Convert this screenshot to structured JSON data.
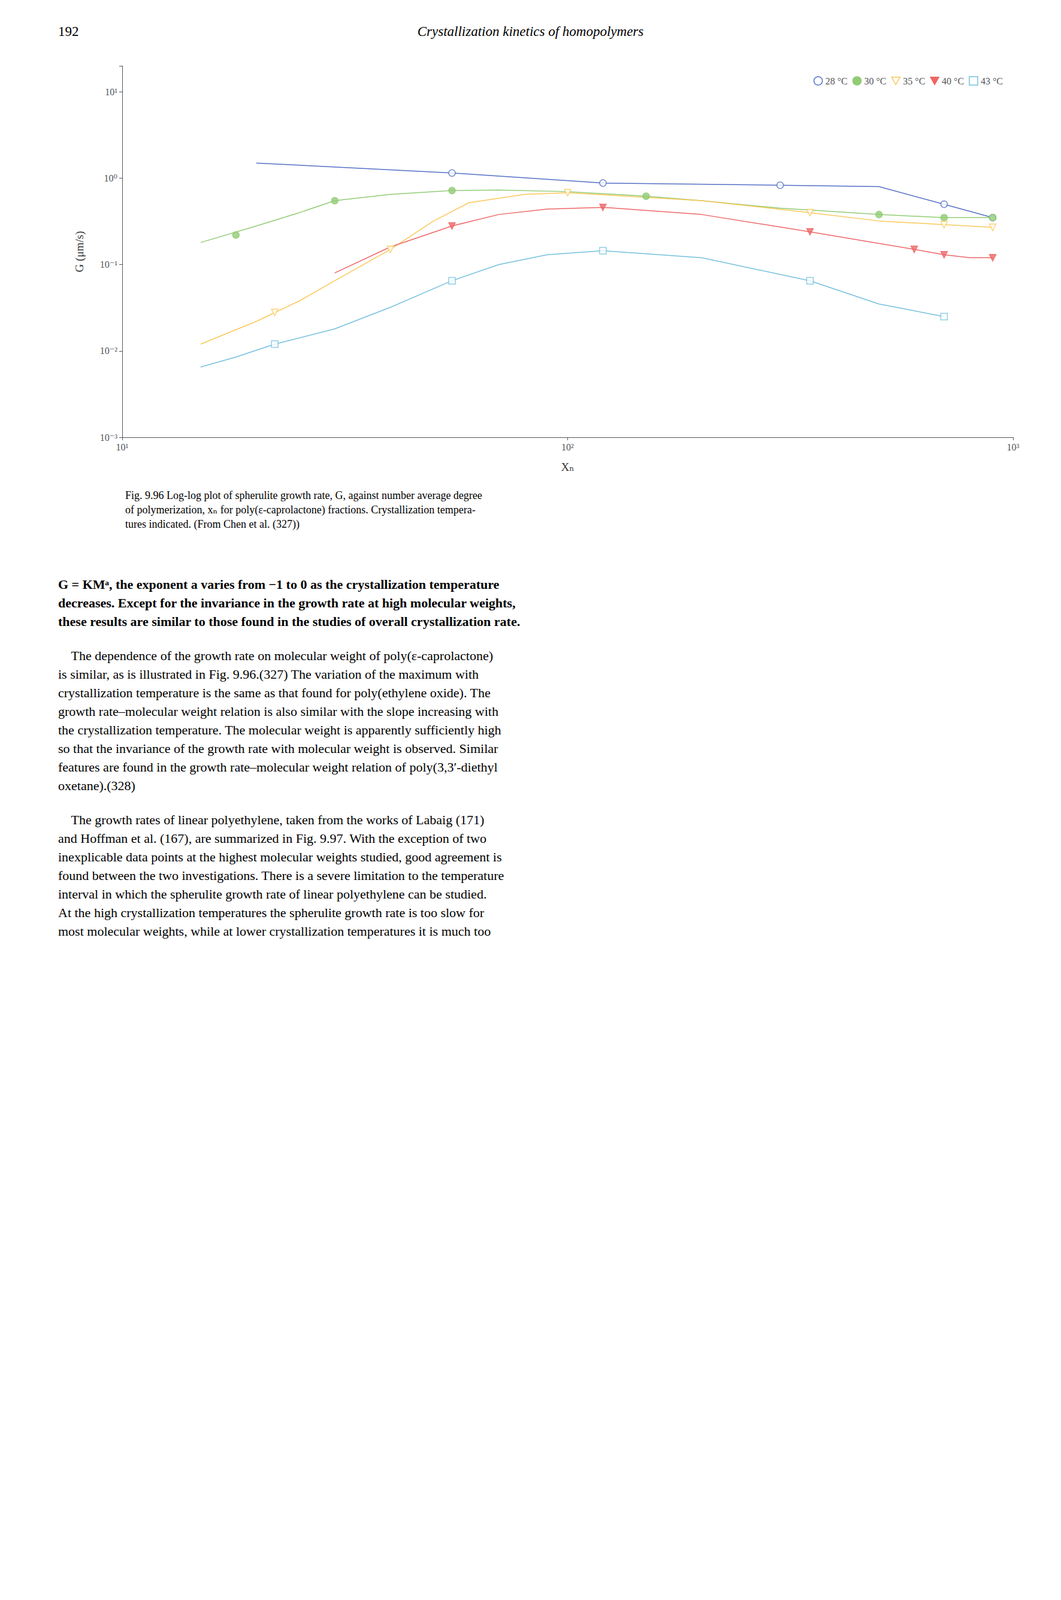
{
  "chart_data": {
    "type": "line",
    "title": "Fig. 9.96 Log-log plot of spherulite growth rate, G, against number average degree\nof polymerization, xₙ for poly(ε-caprolactone) fractions. Crystallization tempera-\ntures indicated. (From Chen et al. (327))",
    "x_label": "Xₙ",
    "y_label": "G (μm/s)",
    "log": true,
    "grid": false,
    "legend": "upper right",
    "xlim": [
      10,
      1000
    ],
    "xticks": [
      {
        "value": 10,
        "label": "10¹"
      },
      {
        "value": 100,
        "label": "10²"
      },
      {
        "value": 1000,
        "label": "10³"
      }
    ],
    "ylim": [
      0.001,
      20
    ],
    "yticks": [
      {
        "value": 0.001,
        "label": "10⁻³"
      },
      {
        "value": 0.01,
        "label": "10⁻²"
      },
      {
        "value": 0.1,
        "label": "10⁻¹"
      },
      {
        "value": 1,
        "label": "10⁰"
      },
      {
        "value": 10,
        "label": "10¹"
      }
    ],
    "series": [
      {
        "name": "28 °C",
        "type": "line",
        "x": [
          20,
          55,
          120,
          300,
          500,
          700,
          900
        ],
        "values": [
          1.5,
          1.15,
          0.88,
          0.83,
          0.8,
          0.5,
          0.35
        ],
        "points": {
          "type": "scatter",
          "marker": "circle-open",
          "x": [
            55,
            120,
            300,
            700,
            900
          ],
          "values": [
            1.15,
            0.88,
            0.83,
            0.5,
            0.35
          ]
        }
      },
      {
        "name": "30 °C",
        "type": "line",
        "x": [
          15,
          20,
          25,
          30,
          40,
          55,
          70,
          100,
          150,
          200,
          300,
          500,
          700,
          900
        ],
        "values": [
          0.18,
          0.28,
          0.4,
          0.55,
          0.65,
          0.72,
          0.73,
          0.7,
          0.62,
          0.55,
          0.45,
          0.38,
          0.35,
          0.35
        ],
        "points": {
          "type": "scatter",
          "marker": "circle",
          "x": [
            18,
            30,
            55,
            150,
            500,
            700,
            900
          ],
          "values": [
            0.22,
            0.55,
            0.72,
            0.62,
            0.38,
            0.35,
            0.35
          ]
        }
      },
      {
        "name": "35 °C",
        "type": "line",
        "x": [
          15,
          20,
          25,
          30,
          40,
          50,
          60,
          80,
          100,
          200,
          350,
          500,
          700,
          900
        ],
        "values": [
          0.012,
          0.022,
          0.038,
          0.065,
          0.15,
          0.32,
          0.52,
          0.65,
          0.68,
          0.55,
          0.4,
          0.32,
          0.29,
          0.27
        ],
        "points": {
          "type": "scatter",
          "marker": "triangle-down-open",
          "x": [
            22,
            40,
            100,
            350,
            700,
            900
          ],
          "values": [
            0.028,
            0.15,
            0.68,
            0.4,
            0.29,
            0.27
          ]
        }
      },
      {
        "name": "40 °C",
        "type": "line",
        "x": [
          30,
          40,
          55,
          70,
          90,
          120,
          200,
          350,
          600,
          700,
          800,
          900
        ],
        "values": [
          0.08,
          0.16,
          0.28,
          0.38,
          0.44,
          0.46,
          0.38,
          0.24,
          0.15,
          0.13,
          0.12,
          0.12
        ],
        "points": {
          "type": "scatter",
          "marker": "triangle-down",
          "x": [
            55,
            120,
            350,
            600,
            700,
            900
          ],
          "values": [
            0.28,
            0.46,
            0.24,
            0.15,
            0.13,
            0.12
          ]
        }
      },
      {
        "name": "43 °C",
        "type": "line",
        "x": [
          15,
          18,
          22,
          30,
          40,
          55,
          70,
          90,
          120,
          200,
          350,
          500,
          700
        ],
        "values": [
          0.0065,
          0.0085,
          0.012,
          0.018,
          0.032,
          0.065,
          0.1,
          0.13,
          0.145,
          0.12,
          0.065,
          0.035,
          0.025
        ],
        "points": {
          "type": "scatter",
          "marker": "square-open",
          "x": [
            22,
            55,
            120,
            350,
            700
          ],
          "values": [
            0.012,
            0.065,
            0.145,
            0.065,
            0.025
          ]
        }
      }
    ],
    "annotations": {
      "header": [
        "192",
        "Crystallization kinetics of homopolymers"
      ],
      "body": [
        [
          "G = KMᵃ, the exponent a varies from −1 to 0 as the crystallization temperature",
          "decreases. Except for the invariance in the growth rate at high molecular weights,",
          "these results are similar to those found in the studies of overall crystallization rate."
        ],
        [
          "    The dependence of the growth rate on molecular weight of poly(ε-caprolactone)",
          "is similar, as is illustrated in Fig. 9.96.(327) The variation of the maximum with",
          "crystallization temperature is the same as that found for poly(ethylene oxide). The",
          "growth rate–molecular weight relation is also similar with the slope increasing with",
          "the crystallization temperature. The molecular weight is apparently sufficiently high",
          "so that the invariance of the growth rate with molecular weight is observed. Similar",
          "features are found in the growth rate–molecular weight relation of poly(3,3′-diethyl",
          "oxetane).(328)"
        ],
        [
          "    The growth rates of linear polyethylene, taken from the works of Labaig (171)",
          "and Hoffman et al. (167), are summarized in Fig. 9.97. With the exception of two",
          "inexplicable data points at the highest molecular weights studied, good agreement is",
          "found between the two investigations. There is a severe limitation to the temperature",
          "interval in which the spherulite growth rate of linear polyethylene can be studied.",
          "At the high crystallization temperatures the spherulite growth rate is too slow for",
          "most molecular weights, while at lower crystallization temperatures it is much too"
        ]
      ]
    }
  }
}
